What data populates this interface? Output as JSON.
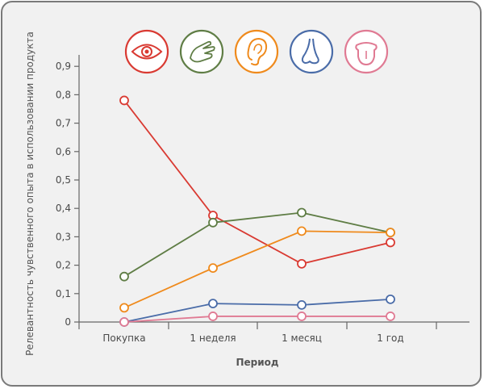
{
  "chart_data": {
    "type": "line",
    "title": "",
    "xlabel": "Период",
    "ylabel": "Релевантность чувственного опыта в использовании продукта",
    "categories": [
      "Покупка",
      "1 неделя",
      "1 месяц",
      "1 год"
    ],
    "y_ticks": [
      "0",
      "0,1",
      "0,2",
      "0,3",
      "0,4",
      "0,5",
      "0,6",
      "0,7",
      "0,8",
      "0,9"
    ],
    "ylim": [
      0,
      0.95
    ],
    "grid": false,
    "legend": "icons above plot",
    "series": [
      {
        "icon": "eye-icon",
        "color": "#d93a32",
        "values": [
          0.78,
          0.375,
          0.205,
          0.28
        ]
      },
      {
        "icon": "hand-icon",
        "color": "#5f7d45",
        "values": [
          0.16,
          0.35,
          0.385,
          0.315
        ]
      },
      {
        "icon": "ear-icon",
        "color": "#ef8a1c",
        "values": [
          0.05,
          0.19,
          0.32,
          0.315
        ]
      },
      {
        "icon": "nose-icon",
        "color": "#4a6ca8",
        "values": [
          0.0,
          0.065,
          0.06,
          0.08
        ]
      },
      {
        "icon": "tongue-icon",
        "color": "#e07a93",
        "values": [
          0.0,
          0.02,
          0.02,
          0.02
        ]
      }
    ]
  }
}
